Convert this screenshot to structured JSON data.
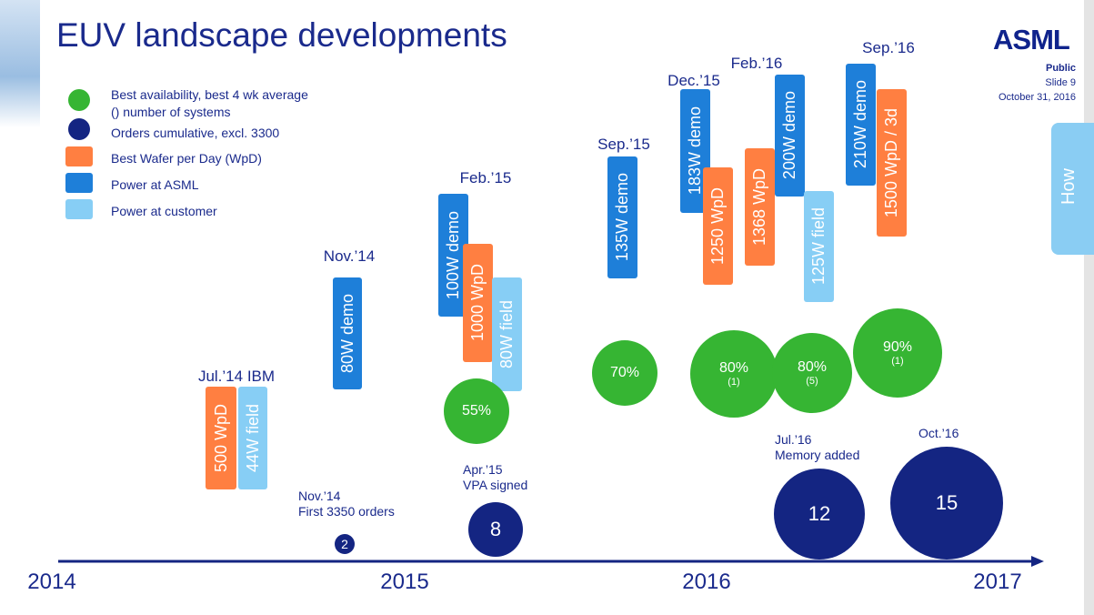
{
  "title": "EUV landscape developments",
  "logo": "ASML",
  "meta": {
    "classification": "Public",
    "slide": "Slide 9",
    "date": "October 31, 2016"
  },
  "side_tab": "How",
  "legend": [
    {
      "label": "Best availability, best 4 wk average",
      "label2": "() number of systems",
      "color": "#36b533",
      "shape": "circle"
    },
    {
      "label": "Orders cumulative, excl. 3300",
      "color": "#142582",
      "shape": "circle"
    },
    {
      "label": "Best Wafer per Day (WpD)",
      "color": "#ff7f41",
      "shape": "square"
    },
    {
      "label": "Power at ASML",
      "color": "#1e7fd9",
      "shape": "square"
    },
    {
      "label": "Power at customer",
      "color": "#87cef5",
      "shape": "square"
    }
  ],
  "milestones": [
    "Jul.’14 IBM",
    "Nov.’14",
    "Feb.’15",
    "Sep.’15",
    "Dec.’15",
    "Feb.’16",
    "Sep.’16"
  ],
  "boxes": [
    "500 WpD",
    "44W field",
    "80W demo",
    "100W demo",
    "1000 WpD",
    "80W field",
    "135W demo",
    "183W demo",
    "1250 WpD",
    "1368 WpD",
    "200W demo",
    "125W field",
    "210W demo",
    "1500 WpD / 3d"
  ],
  "availability": [
    {
      "v": "55%"
    },
    {
      "v": "70%"
    },
    {
      "v": "80%",
      "n": "(1)"
    },
    {
      "v": "80%",
      "n": "(5)"
    },
    {
      "v": "90%",
      "n": "(1)"
    }
  ],
  "orders": [
    "2",
    "8",
    "12",
    "15"
  ],
  "notes": [
    {
      "l1": "Nov.’14",
      "l2": "First 3350  orders"
    },
    {
      "l1": "Apr.’15",
      "l2": "VPA signed"
    },
    {
      "l1": "Jul.’16",
      "l2": "Memory added"
    },
    {
      "l1": "Oct.’16",
      "l2": ""
    }
  ],
  "years": [
    "2014",
    "2015",
    "2016",
    "2017"
  ]
}
